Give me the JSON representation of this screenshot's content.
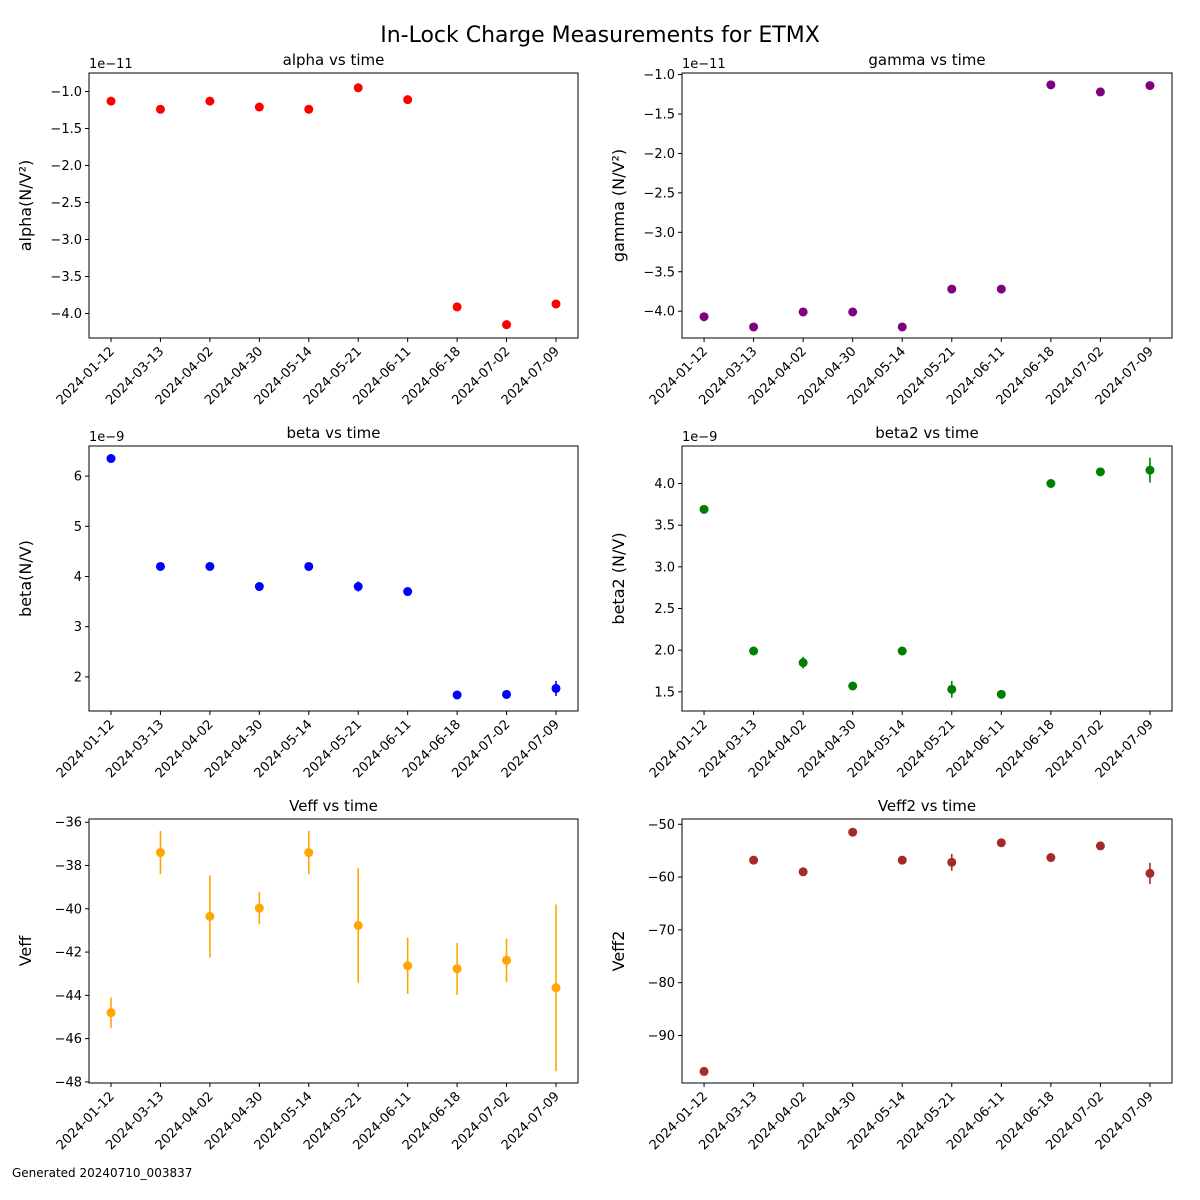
{
  "figure": {
    "title": "In-Lock Charge Measurements for ETMX",
    "footer": "Generated 20240710_003837"
  },
  "chart_data": [
    {
      "type": "scatter",
      "title": "alpha vs time",
      "ylabel": "alpha(N/V²)",
      "offset_text": "1e−11",
      "color": "#ff0000",
      "x": [
        "2024-01-12",
        "2024-03-13",
        "2024-04-02",
        "2024-04-30",
        "2024-05-14",
        "2024-05-21",
        "2024-06-11",
        "2024-06-18",
        "2024-07-02",
        "2024-07-09"
      ],
      "y": [
        -1.13,
        -1.24,
        -1.13,
        -1.21,
        -1.24,
        -0.95,
        -1.11,
        -3.91,
        -4.15,
        -3.87
      ],
      "yerr": [
        0.02,
        0.02,
        0.02,
        0.02,
        0.02,
        0.02,
        0.02,
        0.02,
        0.02,
        0.02
      ],
      "ylim": [
        -4.33,
        -0.75
      ],
      "yticks": [
        -4.0,
        -3.5,
        -3.0,
        -2.5,
        -2.0,
        -1.5,
        -1.0
      ],
      "ytick_labels": [
        "−4.0",
        "−3.5",
        "−3.0",
        "−2.5",
        "−2.0",
        "−1.5",
        "−1.0"
      ]
    },
    {
      "type": "scatter",
      "title": "gamma vs time",
      "ylabel": "gamma (N/V²)",
      "offset_text": "1e−11",
      "color": "#800080",
      "x": [
        "2024-01-12",
        "2024-03-13",
        "2024-04-02",
        "2024-04-30",
        "2024-05-14",
        "2024-05-21",
        "2024-06-11",
        "2024-06-18",
        "2024-07-02",
        "2024-07-09"
      ],
      "y": [
        -4.07,
        -4.2,
        -4.01,
        -4.01,
        -4.2,
        -3.72,
        -3.72,
        -1.13,
        -1.22,
        -1.14
      ],
      "yerr": [
        0.02,
        0.02,
        0.02,
        0.02,
        0.02,
        0.02,
        0.02,
        0.02,
        0.02,
        0.02
      ],
      "ylim": [
        -4.34,
        -0.98
      ],
      "yticks": [
        -4.0,
        -3.5,
        -3.0,
        -2.5,
        -2.0,
        -1.5,
        -1.0
      ],
      "ytick_labels": [
        "−4.0",
        "−3.5",
        "−3.0",
        "−2.5",
        "−2.0",
        "−1.5",
        "−1.0"
      ]
    },
    {
      "type": "scatter",
      "title": "beta vs time",
      "ylabel": "beta(N/V)",
      "offset_text": "1e−9",
      "color": "#0000ff",
      "x": [
        "2024-01-12",
        "2024-03-13",
        "2024-04-02",
        "2024-04-30",
        "2024-05-14",
        "2024-05-21",
        "2024-06-11",
        "2024-06-18",
        "2024-07-02",
        "2024-07-09"
      ],
      "y": [
        6.35,
        4.2,
        4.2,
        3.8,
        4.2,
        3.8,
        3.7,
        1.64,
        1.65,
        1.77
      ],
      "yerr": [
        0.03,
        0.03,
        0.03,
        0.03,
        0.03,
        0.1,
        0.03,
        0.03,
        0.03,
        0.15
      ],
      "ylim": [
        1.32,
        6.6
      ],
      "yticks": [
        2,
        3,
        4,
        5,
        6
      ],
      "ytick_labels": [
        "2",
        "3",
        "4",
        "5",
        "6"
      ]
    },
    {
      "type": "scatter",
      "title": "beta2 vs time",
      "ylabel": "beta2 (N/V)",
      "offset_text": "1e−9",
      "color": "#008000",
      "x": [
        "2024-01-12",
        "2024-03-13",
        "2024-04-02",
        "2024-04-30",
        "2024-05-14",
        "2024-05-21",
        "2024-06-11",
        "2024-06-18",
        "2024-07-02",
        "2024-07-09"
      ],
      "y": [
        3.69,
        1.99,
        1.85,
        1.57,
        1.99,
        1.53,
        1.47,
        4.0,
        4.14,
        4.16
      ],
      "yerr": [
        0.02,
        0.02,
        0.07,
        0.02,
        0.02,
        0.1,
        0.02,
        0.02,
        0.03,
        0.15
      ],
      "ylim": [
        1.27,
        4.45
      ],
      "yticks": [
        1.5,
        2.0,
        2.5,
        3.0,
        3.5,
        4.0
      ],
      "ytick_labels": [
        "1.5",
        "2.0",
        "2.5",
        "3.0",
        "3.5",
        "4.0"
      ]
    },
    {
      "type": "scatter",
      "title": "Veff vs time",
      "ylabel": "Veff",
      "offset_text": "",
      "color": "#ffa500",
      "x": [
        "2024-01-12",
        "2024-03-13",
        "2024-04-02",
        "2024-04-30",
        "2024-05-14",
        "2024-05-21",
        "2024-06-11",
        "2024-06-18",
        "2024-07-02",
        "2024-07-09"
      ],
      "y": [
        -44.8,
        -37.4,
        -40.35,
        -39.97,
        -37.4,
        -40.77,
        -42.63,
        -42.77,
        -42.38,
        -43.65
      ],
      "yerr": [
        0.7,
        1.0,
        1.9,
        0.75,
        1.0,
        2.65,
        1.3,
        1.2,
        1.0,
        3.85
      ],
      "ylim": [
        -48.05,
        -35.85
      ],
      "yticks": [
        -48,
        -46,
        -44,
        -42,
        -40,
        -38,
        -36
      ],
      "ytick_labels": [
        "−48",
        "−46",
        "−44",
        "−42",
        "−40",
        "−38",
        "−36"
      ]
    },
    {
      "type": "scatter",
      "title": "Veff2 vs time",
      "ylabel": "Veff2",
      "offset_text": "",
      "color": "#a52a2a",
      "x": [
        "2024-01-12",
        "2024-03-13",
        "2024-04-02",
        "2024-04-30",
        "2024-05-14",
        "2024-05-21",
        "2024-06-11",
        "2024-06-18",
        "2024-07-02",
        "2024-07-09"
      ],
      "y": [
        -96.8,
        -56.8,
        -59.0,
        -51.5,
        -56.8,
        -57.2,
        -53.5,
        -56.3,
        -54.1,
        -59.3
      ],
      "yerr": [
        0.3,
        0.3,
        0.8,
        0.3,
        0.3,
        1.6,
        0.3,
        0.3,
        0.3,
        2.0
      ],
      "ylim": [
        -99.0,
        -49.0
      ],
      "yticks": [
        -90,
        -80,
        -70,
        -60,
        -50
      ],
      "ytick_labels": [
        "−90",
        "−80",
        "−70",
        "−60",
        "−50"
      ]
    }
  ]
}
